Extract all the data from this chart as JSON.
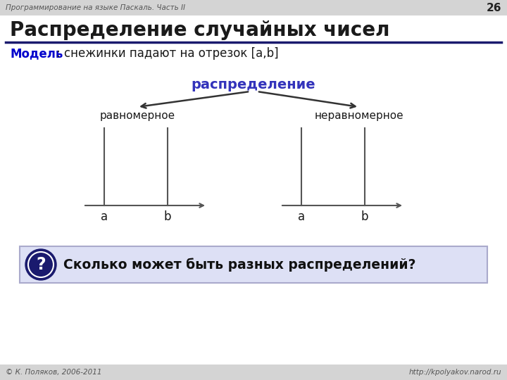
{
  "slide_bg": "#ffffff",
  "header_bg": "#d4d4d4",
  "header_text": "Программирование на языке Паскаль. Часть II",
  "slide_number": "26",
  "title": "Распределение случайных чисел",
  "model_label": "Модель",
  "model_text": ": снежинки падают на отрезок [a,b]",
  "distribution_label": "распределение",
  "left_label": "равномерное",
  "right_label": "неравномерное",
  "footer_left": "© К. Поляков, 2006-2011",
  "footer_right": "http://kpolyakov.narod.ru",
  "question_text": "Сколько может быть разных распределений?",
  "title_color": "#1a1a1a",
  "model_keyword_color": "#0000cc",
  "distribution_color": "#3333bb",
  "title_underline_color": "#1a1a6e",
  "question_bg": "#dde0f5",
  "question_border": "#aaaacc",
  "question_mark_bg": "#1a1a6e",
  "line_color": "#555555",
  "arrow_color": "#333333",
  "footer_bg": "#d4d4d4",
  "footer_color": "#555555"
}
